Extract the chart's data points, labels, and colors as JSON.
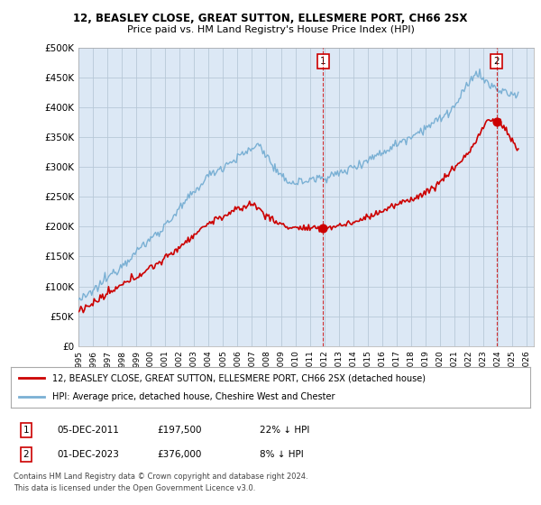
{
  "title": "12, BEASLEY CLOSE, GREAT SUTTON, ELLESMERE PORT, CH66 2SX",
  "subtitle": "Price paid vs. HM Land Registry's House Price Index (HPI)",
  "ylim": [
    0,
    500000
  ],
  "yticks": [
    0,
    50000,
    100000,
    150000,
    200000,
    250000,
    300000,
    350000,
    400000,
    450000,
    500000
  ],
  "ytick_labels": [
    "£0",
    "£50K",
    "£100K",
    "£150K",
    "£200K",
    "£250K",
    "£300K",
    "£350K",
    "£400K",
    "£450K",
    "£500K"
  ],
  "hpi_color": "#7ab0d4",
  "price_color": "#cc0000",
  "vline_color": "#cc0000",
  "chart_bg": "#dce8f5",
  "grid_color": "#b8c8d8",
  "sale1_x": 2011.92,
  "sale1_price": 197500,
  "sale2_x": 2023.92,
  "sale2_price": 376000,
  "legend_line1": "12, BEASLEY CLOSE, GREAT SUTTON, ELLESMERE PORT, CH66 2SX (detached house)",
  "legend_line2": "HPI: Average price, detached house, Cheshire West and Chester",
  "sale1_date_str": "05-DEC-2011",
  "sale1_price_str": "£197,500",
  "sale1_pct": "22% ↓ HPI",
  "sale2_date_str": "01-DEC-2023",
  "sale2_price_str": "£376,000",
  "sale2_pct": "8% ↓ HPI",
  "footer1": "Contains HM Land Registry data © Crown copyright and database right 2024.",
  "footer2": "This data is licensed under the Open Government Licence v3.0."
}
